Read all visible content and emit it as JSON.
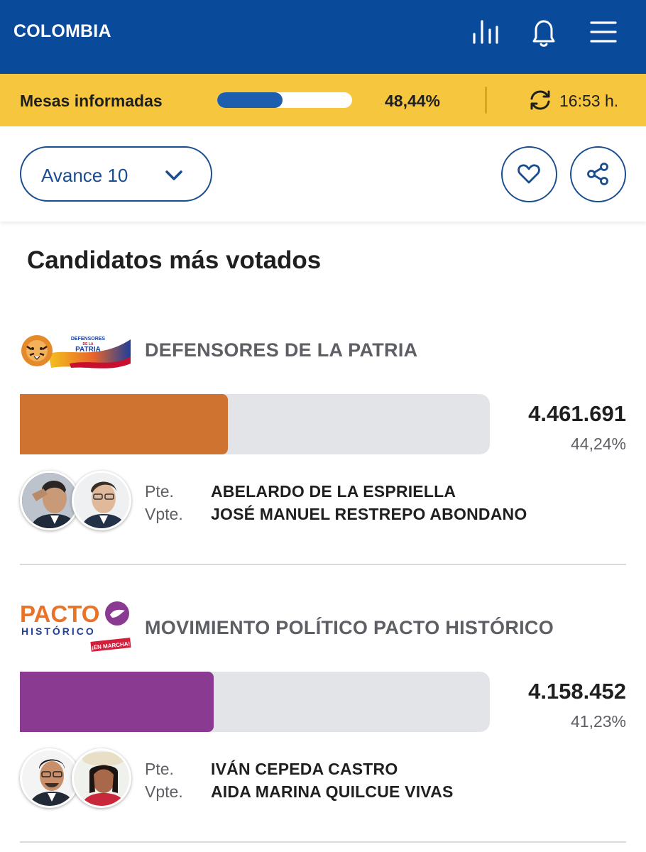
{
  "header": {
    "title": "COLOMBIA",
    "icons": [
      "bar-chart-icon",
      "bell-icon",
      "menu-icon"
    ]
  },
  "progress": {
    "label": "Mesas informadas",
    "percent_text": "48,44%",
    "fraction": 0.4844,
    "time": "16:53 h."
  },
  "controls": {
    "dropdown_value": "Avance 10"
  },
  "section": {
    "title": "Candidatos más votados"
  },
  "candidates": [
    {
      "party": "DEFENSORES DE LA PATRIA",
      "votes": "4.461.691",
      "percent": "44,24%",
      "share": 0.4424,
      "color": "#cf7430",
      "pte_label": "Pte.",
      "vpte_label": "Vpte.",
      "president": "ABELARDO DE LA ESPRIELLA",
      "vice_president": "JOSÉ MANUEL RESTREPO ABONDANO",
      "logo_text": [
        "DEFENSORES",
        "DE LA",
        "PATRIA"
      ]
    },
    {
      "party": "MOVIMIENTO POLÍTICO PACTO HISTÓRICO",
      "votes": "4.158.452",
      "percent": "41,23%",
      "share": 0.4123,
      "color": "#8b3a92",
      "pte_label": "Pte.",
      "vpte_label": "Vpte.",
      "president": "IVÁN CEPEDA CASTRO",
      "vice_president": "AIDA MARINA QUILCUE VIVAS",
      "logo_text": [
        "PACTO",
        "HISTÓRICO",
        "¡EN MARCHA!"
      ]
    }
  ],
  "colors": {
    "header_blue": "#0a4a9a",
    "strip_yellow": "#f7c63f",
    "accent_blue": "#1a4d8f"
  }
}
